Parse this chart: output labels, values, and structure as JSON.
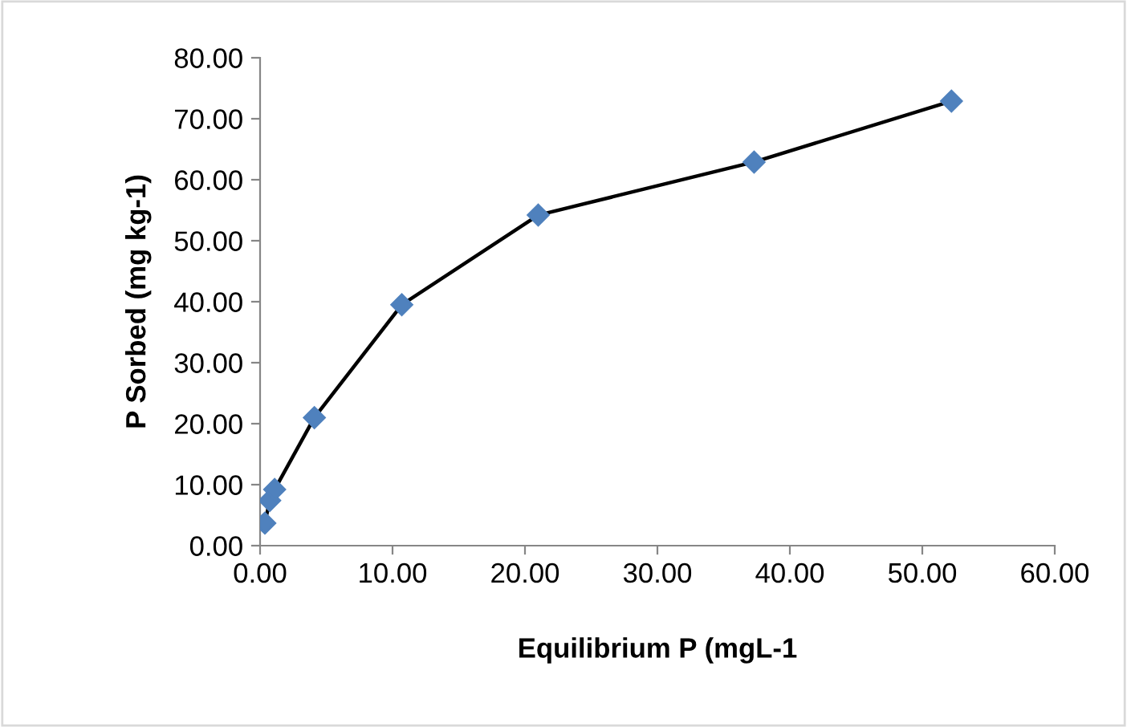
{
  "chart_data": {
    "type": "line",
    "xlabel": "Equilibrium P (mgL-1",
    "ylabel": "P Sorbed (mg kg-1)",
    "x": [
      0.36,
      0.73,
      1.1,
      4.1,
      10.7,
      21.0,
      37.3,
      52.2
    ],
    "series": [
      {
        "color": "#000000",
        "colors": [
          "#4f81bd",
          "#4f81bd",
          "#4f81bd",
          "#4f81bd",
          "#4f81bd",
          "#4f81bd",
          "#4f81bd",
          "#4f81bd"
        ],
        "values": [
          3.7,
          7.4,
          9.2,
          21.0,
          39.5,
          54.2,
          62.9,
          72.9
        ]
      }
    ],
    "xlim": [
      0,
      60
    ],
    "xticks": [
      {
        "value": 0,
        "label": "0.00"
      },
      {
        "value": 10,
        "label": "10.00"
      },
      {
        "value": 20,
        "label": "20.00"
      },
      {
        "value": 30,
        "label": "30.00"
      },
      {
        "value": 40,
        "label": "40.00"
      },
      {
        "value": 50,
        "label": "50.00"
      },
      {
        "value": 60,
        "label": "60.00"
      }
    ],
    "ylim": [
      0,
      80
    ],
    "yticks": [
      {
        "value": 0,
        "label": "0.00"
      },
      {
        "value": 10,
        "label": "10.00"
      },
      {
        "value": 20,
        "label": "20.00"
      },
      {
        "value": 30,
        "label": "30.00"
      },
      {
        "value": 40,
        "label": "40.00"
      },
      {
        "value": 50,
        "label": "50.00"
      },
      {
        "value": 60,
        "label": "60.00"
      },
      {
        "value": 70,
        "label": "70.00"
      },
      {
        "value": 80,
        "label": "80.00"
      }
    ],
    "grid": false,
    "legend": false,
    "marker": "diamond",
    "line_style": "solid"
  }
}
